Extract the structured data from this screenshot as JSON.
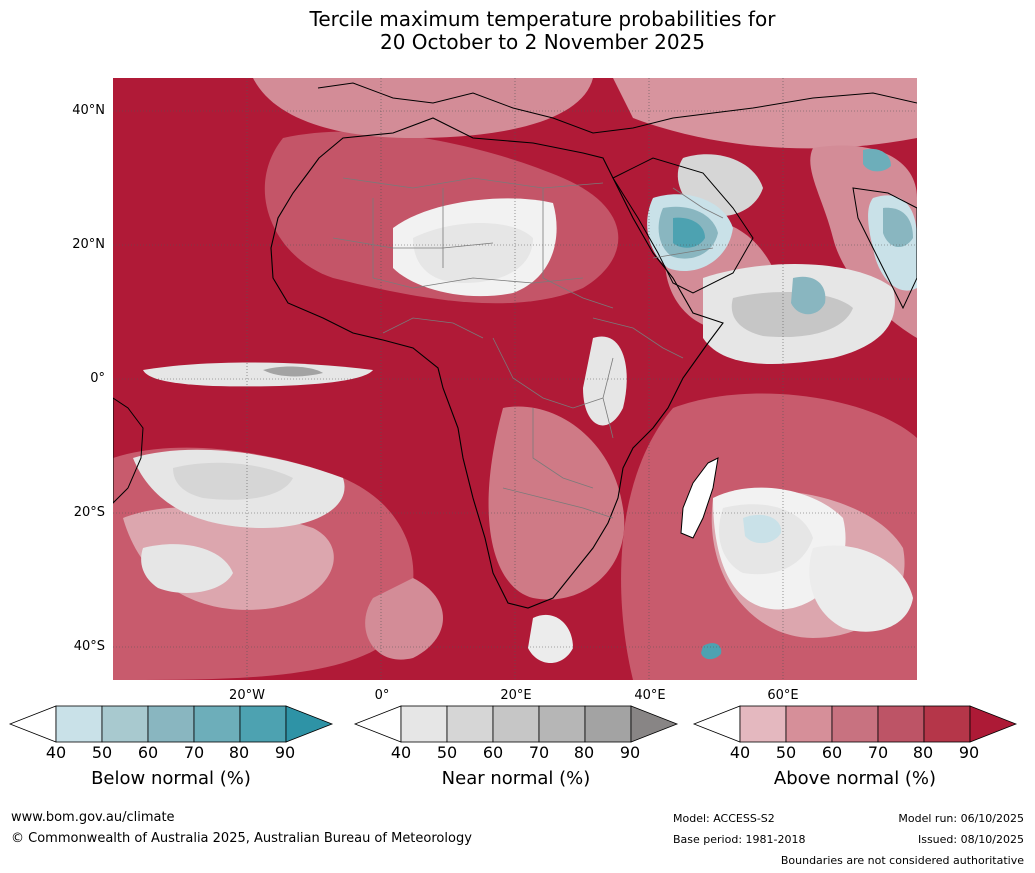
{
  "title": {
    "line1": "Tercile maximum temperature probabilities for",
    "line2": "20 October to 2 November 2025"
  },
  "latitude_labels": [
    "40°N",
    "20°N",
    "0°",
    "20°S",
    "40°S"
  ],
  "longitude_labels": [
    "20°W",
    "0°",
    "20°E",
    "40°E",
    "60°E"
  ],
  "colorbars": {
    "below": {
      "label": "Below normal (%)",
      "ticks": [
        "40",
        "50",
        "60",
        "70",
        "80",
        "90"
      ],
      "colors": [
        "#ffffff",
        "#c9e1e8",
        "#a8c9cf",
        "#89b6c0",
        "#6daeba",
        "#4da2b1",
        "#2e93a6"
      ]
    },
    "near": {
      "label": "Near normal (%)",
      "ticks": [
        "40",
        "50",
        "60",
        "70",
        "80",
        "90"
      ],
      "colors": [
        "#ffffff",
        "#e6e6e6",
        "#d6d6d6",
        "#c6c6c6",
        "#b6b6b6",
        "#a3a3a3",
        "#888585"
      ]
    },
    "above": {
      "label": "Above normal (%)",
      "ticks": [
        "40",
        "50",
        "60",
        "70",
        "80",
        "90"
      ],
      "colors": [
        "#ffffff",
        "#e4b8bf",
        "#d68f99",
        "#c87280",
        "#bd5466",
        "#b53649",
        "#ad1a36"
      ]
    }
  },
  "footer": {
    "website": "www.bom.gov.au/climate",
    "copyright": "© Commonwealth of Australia 2025, Australian Bureau of Meteorology",
    "model": "Model: ACCESS-S2",
    "base_period": "Base period: 1981-2018",
    "model_run": "Model run: 06/10/2025",
    "issued": "Issued: 08/10/2025",
    "disclaimer": "Boundaries are not considered authoritative"
  }
}
